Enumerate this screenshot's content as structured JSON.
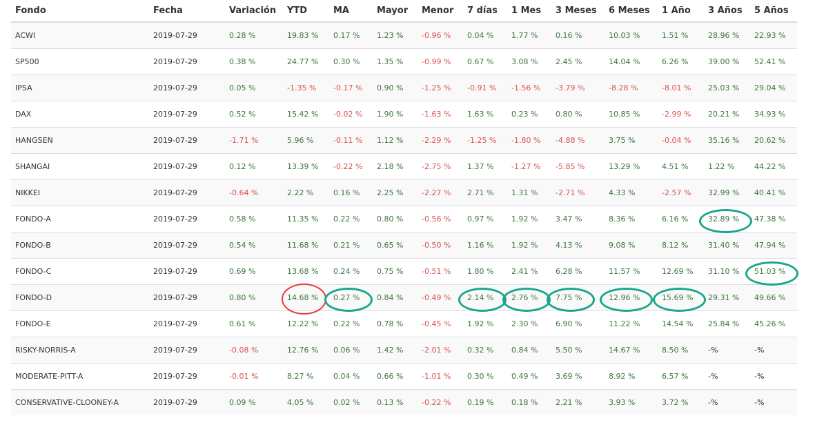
{
  "table": {
    "headers": [
      "Fondo",
      "Fecha",
      "Variación",
      "YTD",
      "MA",
      "Mayor",
      "Menor",
      "7 días",
      "1 Mes",
      "3 Meses",
      "6 Meses",
      "1 Año",
      "3 Años",
      "5 Años"
    ],
    "rows": [
      [
        "ACWI",
        "2019-07-29",
        "0.28 %",
        "19.83 %",
        "0.17 %",
        "1.23 %",
        "-0.96 %",
        "0.04 %",
        "1.77 %",
        "0.16 %",
        "10.03 %",
        "1.51 %",
        "28.96 %",
        "22.93 %"
      ],
      [
        "SP500",
        "2019-07-29",
        "0.38 %",
        "24.77 %",
        "0.30 %",
        "1.35 %",
        "-0.99 %",
        "0.67 %",
        "3.08 %",
        "2.45 %",
        "14.04 %",
        "6.26 %",
        "39.00 %",
        "52.41 %"
      ],
      [
        "IPSA",
        "2019-07-29",
        "0.05 %",
        "-1.35 %",
        "-0.17 %",
        "0.90 %",
        "-1.25 %",
        "-0.91 %",
        "-1.56 %",
        "-3.79 %",
        "-8.28 %",
        "-8.01 %",
        "25.03 %",
        "29.04 %"
      ],
      [
        "DAX",
        "2019-07-29",
        "0.52 %",
        "15.42 %",
        "-0.02 %",
        "1.90 %",
        "-1.63 %",
        "1.63 %",
        "0.23 %",
        "0.80 %",
        "10.85 %",
        "-2.99 %",
        "20.21 %",
        "34.93 %"
      ],
      [
        "HANGSEN",
        "2019-07-29",
        "-1.71 %",
        "5.96 %",
        "-0.11 %",
        "1.12 %",
        "-2.29 %",
        "-1.25 %",
        "-1.80 %",
        "-4.88 %",
        "3.75 %",
        "-0.04 %",
        "35.16 %",
        "20.62 %"
      ],
      [
        "SHANGAI",
        "2019-07-29",
        "0.12 %",
        "13.39 %",
        "-0.22 %",
        "2.18 %",
        "-2.75 %",
        "1.37 %",
        "-1.27 %",
        "-5.85 %",
        "13.29 %",
        "4.51 %",
        "1.22 %",
        "44.22 %"
      ],
      [
        "NIKKEI",
        "2019-07-29",
        "-0.64 %",
        "2.22 %",
        "0.16 %",
        "2.25 %",
        "-2.27 %",
        "2.71 %",
        "1.31 %",
        "-2.71 %",
        "4.33 %",
        "-2.57 %",
        "32.99 %",
        "40.41 %"
      ],
      [
        "FONDO-A",
        "2019-07-29",
        "0.58 %",
        "11.35 %",
        "0.22 %",
        "0.80 %",
        "-0.56 %",
        "0.97 %",
        "1.92 %",
        "3.47 %",
        "8.36 %",
        "6.16 %",
        "32.89 %",
        "47.38 %"
      ],
      [
        "FONDO-B",
        "2019-07-29",
        "0.54 %",
        "11.68 %",
        "0.21 %",
        "0.65 %",
        "-0.50 %",
        "1.16 %",
        "1.92 %",
        "4.13 %",
        "9.08 %",
        "8.12 %",
        "31.40 %",
        "47.94 %"
      ],
      [
        "FONDO-C",
        "2019-07-29",
        "0.69 %",
        "13.68 %",
        "0.24 %",
        "0.75 %",
        "-0.51 %",
        "1.80 %",
        "2.41 %",
        "6.28 %",
        "11.57 %",
        "12.69 %",
        "31.10 %",
        "51.03 %"
      ],
      [
        "FONDO-D",
        "2019-07-29",
        "0.80 %",
        "14.68 %",
        "0.27 %",
        "0.84 %",
        "-0.49 %",
        "2.14 %",
        "2.76 %",
        "7.75 %",
        "12.96 %",
        "15.69 %",
        "29.31 %",
        "49.66 %"
      ],
      [
        "FONDO-E",
        "2019-07-29",
        "0.61 %",
        "12.22 %",
        "0.22 %",
        "0.78 %",
        "-0.45 %",
        "1.92 %",
        "2.30 %",
        "6.90 %",
        "11.22 %",
        "14.54 %",
        "25.84 %",
        "45.26 %"
      ],
      [
        "RISKY-NORRIS-A",
        "2019-07-29",
        "-0.08 %",
        "12.76 %",
        "0.06 %",
        "1.42 %",
        "-2.01 %",
        "0.32 %",
        "0.84 %",
        "5.50 %",
        "14.67 %",
        "8.50 %",
        "-%",
        "-%"
      ],
      [
        "MODERATE-PITT-A",
        "2019-07-29",
        "-0.01 %",
        "8.27 %",
        "0.04 %",
        "0.66 %",
        "-1.01 %",
        "0.30 %",
        "0.49 %",
        "3.69 %",
        "8.92 %",
        "6.57 %",
        "-%",
        "-%"
      ],
      [
        "CONSERVATIVE-CLOONEY-A",
        "2019-07-29",
        "0.09 %",
        "4.05 %",
        "0.02 %",
        "0.13 %",
        "-0.22 %",
        "0.19 %",
        "0.18 %",
        "2.21 %",
        "3.93 %",
        "3.72 %",
        "-%",
        "-%"
      ]
    ]
  },
  "highlights": [
    {
      "row": 7,
      "col": 12,
      "color": "green"
    },
    {
      "row": 9,
      "col": 13,
      "color": "green"
    },
    {
      "row": 10,
      "col": 3,
      "color": "red"
    },
    {
      "row": 10,
      "col": 4,
      "color": "green"
    },
    {
      "row": 10,
      "col": 7,
      "color": "green"
    },
    {
      "row": 10,
      "col": 8,
      "color": "green"
    },
    {
      "row": 10,
      "col": 9,
      "color": "green"
    },
    {
      "row": 10,
      "col": 10,
      "color": "green"
    },
    {
      "row": 10,
      "col": 11,
      "color": "green"
    }
  ],
  "colors": {
    "positive": "#3c763d",
    "negative": "#d9534f",
    "highlight_green": "#1aa68a",
    "highlight_red": "#e8383c"
  }
}
